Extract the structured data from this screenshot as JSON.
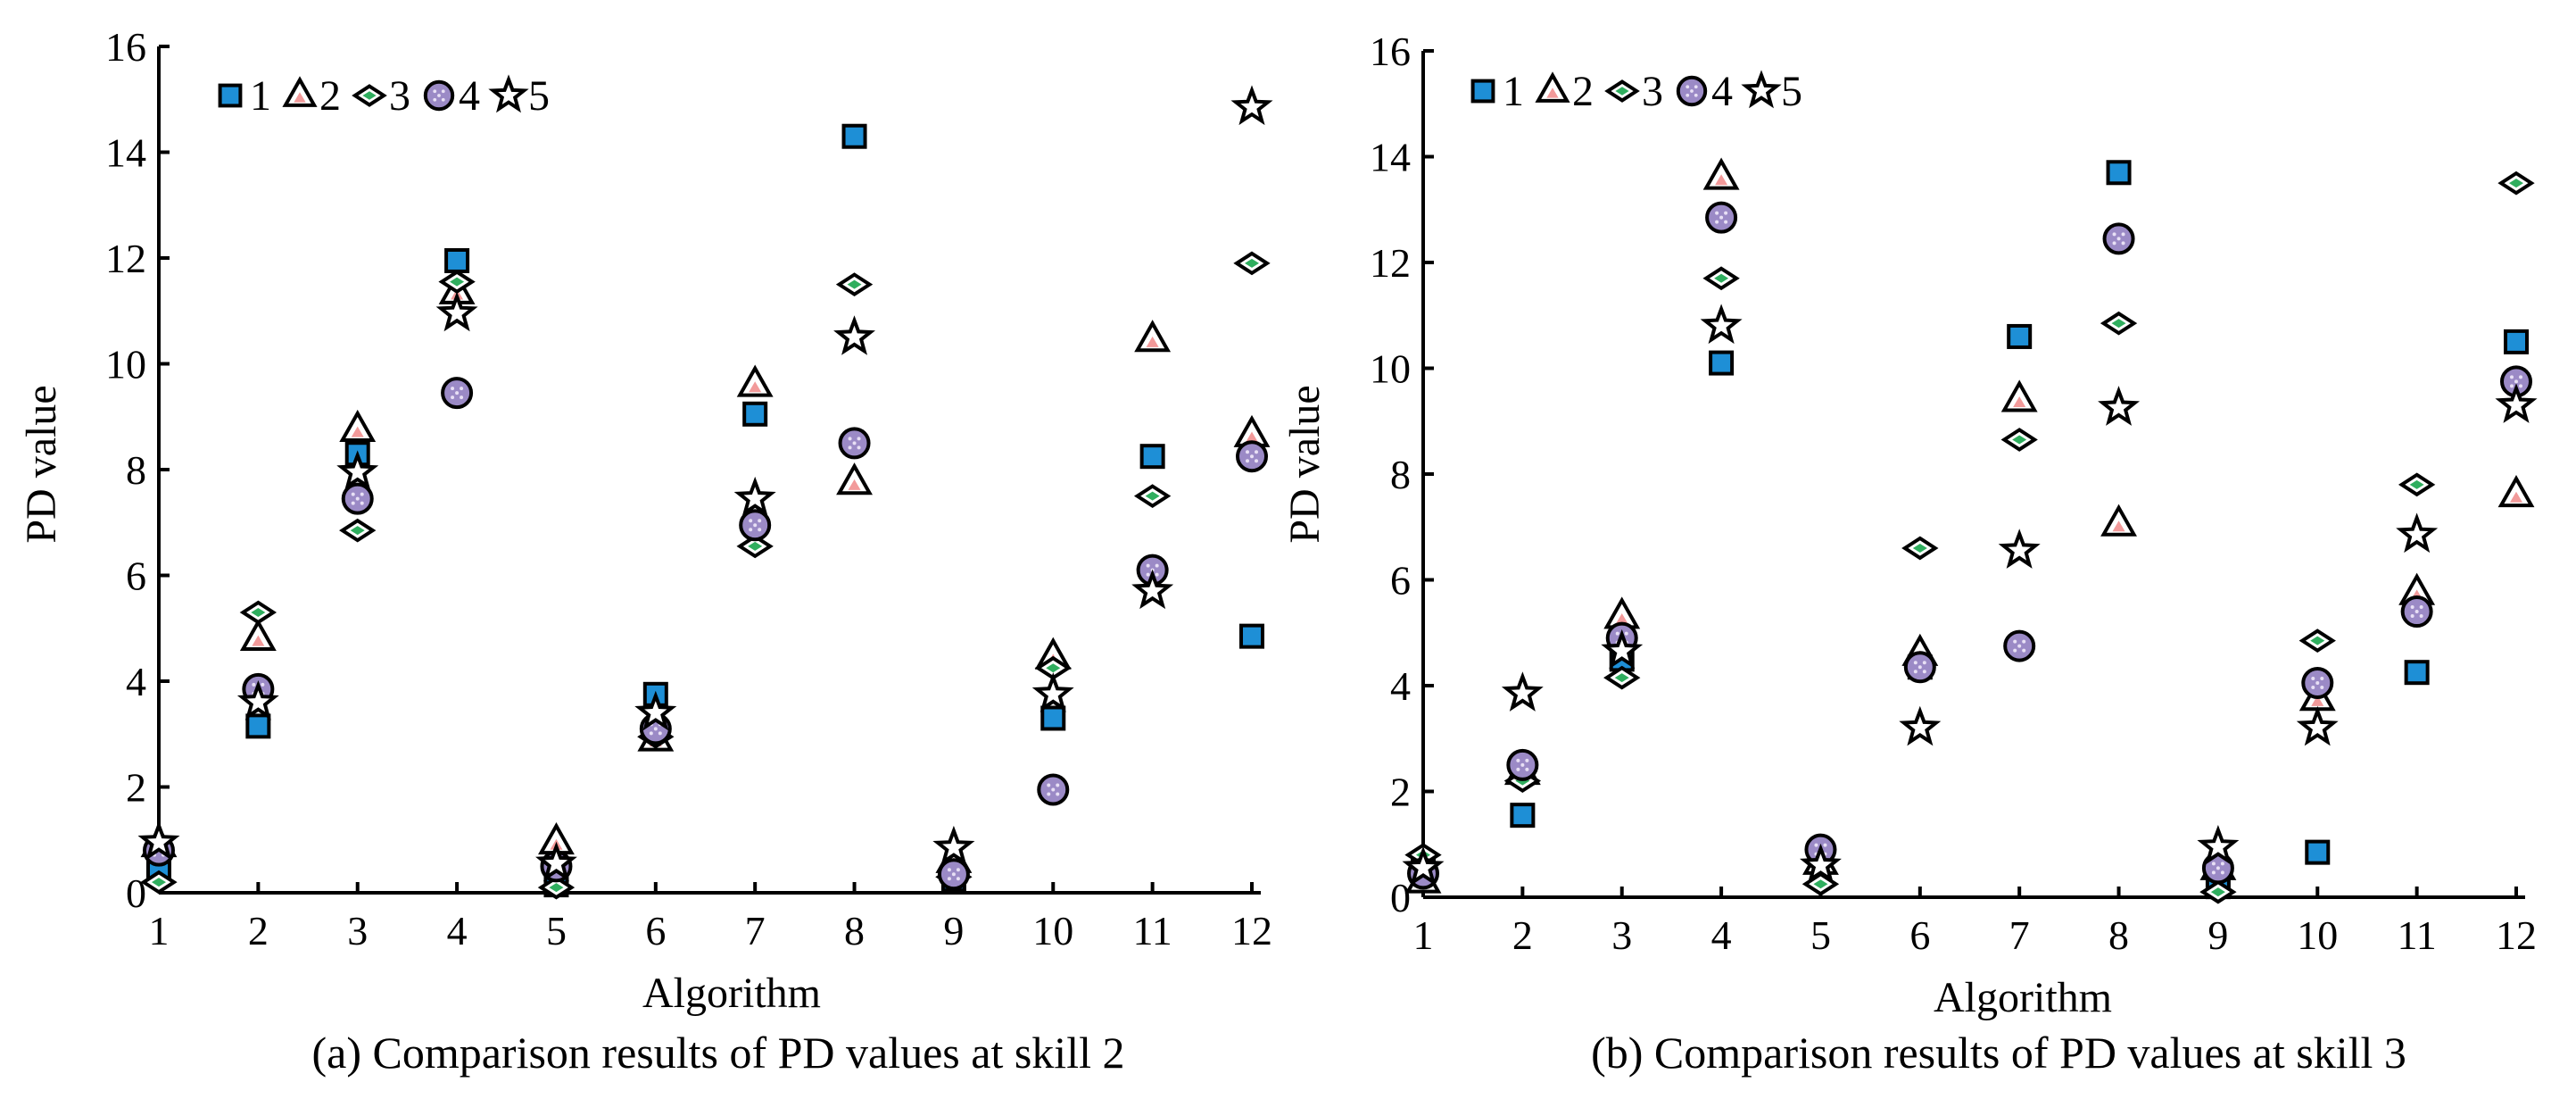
{
  "chart_data": [
    {
      "type": "scatter",
      "xlabel": "Algorithm",
      "ylabel": "PD value",
      "caption": "(a) Comparison results of PD values at skill 2",
      "xlim": [
        1,
        12
      ],
      "ylim": [
        0,
        16
      ],
      "x_ticks": [
        "1",
        "2",
        "3",
        "4",
        "5",
        "6",
        "7",
        "8",
        "9",
        "10",
        "11",
        "12"
      ],
      "y_ticks": [
        "0",
        "2",
        "4",
        "6",
        "8",
        "10",
        "12",
        "14",
        "16"
      ],
      "legend": [
        "1",
        "2",
        "3",
        "4",
        "5"
      ],
      "x": [
        1,
        2,
        3,
        4,
        5,
        6,
        7,
        8,
        9,
        10,
        11,
        12
      ],
      "series": [
        {
          "name": "1",
          "marker": "square",
          "values": [
            0.45,
            3.15,
            8.3,
            11.95,
            0.15,
            3.75,
            9.05,
            14.3,
            0.25,
            3.3,
            8.25,
            4.85
          ]
        },
        {
          "name": "2",
          "marker": "triangle",
          "values": [
            0.9,
            4.8,
            8.75,
            11.35,
            0.95,
            2.9,
            9.6,
            7.75,
            0.6,
            4.45,
            10.45,
            8.65
          ]
        },
        {
          "name": "3",
          "marker": "diamond",
          "values": [
            0.2,
            5.3,
            6.85,
            11.55,
            0.1,
            2.95,
            6.55,
            11.5,
            0.3,
            4.25,
            7.5,
            11.9
          ]
        },
        {
          "name": "4",
          "marker": "circle",
          "values": [
            0.8,
            3.85,
            7.45,
            9.45,
            0.5,
            3.1,
            6.95,
            8.5,
            0.35,
            1.95,
            6.1,
            8.25
          ]
        },
        {
          "name": "5",
          "marker": "star",
          "values": [
            0.95,
            3.6,
            7.95,
            10.95,
            0.55,
            3.4,
            7.45,
            10.5,
            0.85,
            3.75,
            5.7,
            14.85
          ]
        }
      ]
    },
    {
      "type": "scatter",
      "xlabel": "Algorithm",
      "ylabel": "PD value",
      "caption": "(b) Comparison results of PD values at skill 3",
      "xlim": [
        1,
        12
      ],
      "ylim": [
        0,
        16
      ],
      "x_ticks": [
        "1",
        "2",
        "3",
        "4",
        "5",
        "6",
        "7",
        "8",
        "9",
        "10",
        "11",
        "12"
      ],
      "y_ticks": [
        "0",
        "2",
        "4",
        "6",
        "8",
        "10",
        "12",
        "14",
        "16"
      ],
      "legend": [
        "1",
        "2",
        "3",
        "4",
        "5"
      ],
      "x": [
        1,
        2,
        3,
        4,
        5,
        6,
        7,
        8,
        9,
        10,
        11,
        12
      ],
      "series": [
        {
          "name": "1",
          "marker": "square",
          "values": [
            0.5,
            1.55,
            4.5,
            10.1,
            0.85,
            4.35,
            10.6,
            13.7,
            0.2,
            0.85,
            4.25,
            10.5
          ]
        },
        {
          "name": "2",
          "marker": "triangle",
          "values": [
            0.3,
            2.35,
            5.3,
            13.6,
            0.65,
            4.6,
            9.4,
            7.05,
            0.55,
            3.75,
            5.75,
            7.6
          ]
        },
        {
          "name": "3",
          "marker": "diamond",
          "values": [
            0.8,
            2.2,
            4.15,
            11.7,
            0.25,
            6.6,
            8.65,
            10.85,
            0.1,
            4.85,
            7.8,
            13.5
          ]
        },
        {
          "name": "4",
          "marker": "circle",
          "values": [
            0.45,
            2.5,
            4.9,
            12.85,
            0.9,
            4.35,
            4.75,
            12.45,
            0.55,
            4.05,
            5.4,
            9.75
          ]
        },
        {
          "name": "5",
          "marker": "star",
          "values": [
            0.55,
            3.85,
            4.65,
            10.8,
            0.6,
            3.2,
            6.55,
            9.25,
            0.95,
            3.2,
            6.85,
            9.3
          ]
        }
      ]
    }
  ],
  "colors": {
    "square": "#1e8fd6",
    "triangle_fill": "#ffffff",
    "triangle_inner": "#f29a9a",
    "diamond_fill": "#ffffff",
    "diamond_inner": "#2fae5e",
    "circle_fill": "#9b8ac6",
    "circle_dots": "#e8e0f5",
    "star_fill": "#ffffff"
  }
}
